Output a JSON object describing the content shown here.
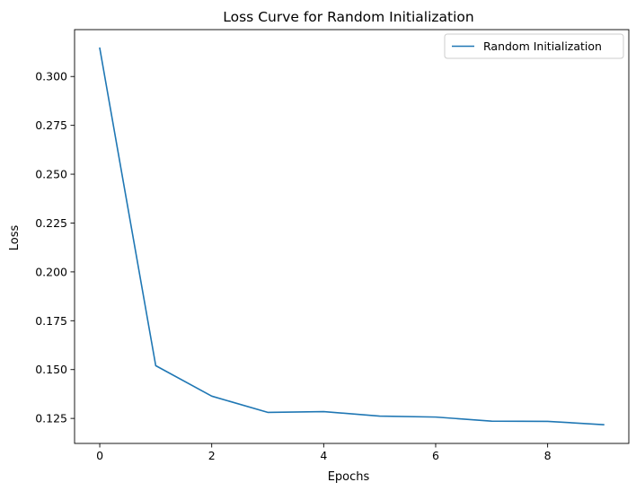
{
  "chart_data": {
    "type": "line",
    "title": "Loss Curve for Random Initialization",
    "xlabel": "Epochs",
    "ylabel": "Loss",
    "x": [
      0,
      1,
      2,
      3,
      4,
      5,
      6,
      7,
      8,
      9
    ],
    "series": [
      {
        "name": "Random Initialization",
        "color": "#1f77b4",
        "values": [
          0.3145,
          0.152,
          0.1364,
          0.1281,
          0.1285,
          0.1262,
          0.1257,
          0.1236,
          0.1235,
          0.1218
        ]
      }
    ],
    "xlim": [
      -0.45,
      9.45
    ],
    "ylim": [
      0.1122,
      0.324
    ],
    "xticks": [
      0,
      2,
      4,
      6,
      8
    ],
    "xtick_labels": [
      "0",
      "2",
      "4",
      "6",
      "8"
    ],
    "yticks": [
      0.125,
      0.15,
      0.175,
      0.2,
      0.225,
      0.25,
      0.275,
      0.3
    ],
    "ytick_labels": [
      "0.125",
      "0.150",
      "0.175",
      "0.200",
      "0.225",
      "0.250",
      "0.275",
      "0.300"
    ],
    "grid": false,
    "legend_position": "top-right"
  }
}
